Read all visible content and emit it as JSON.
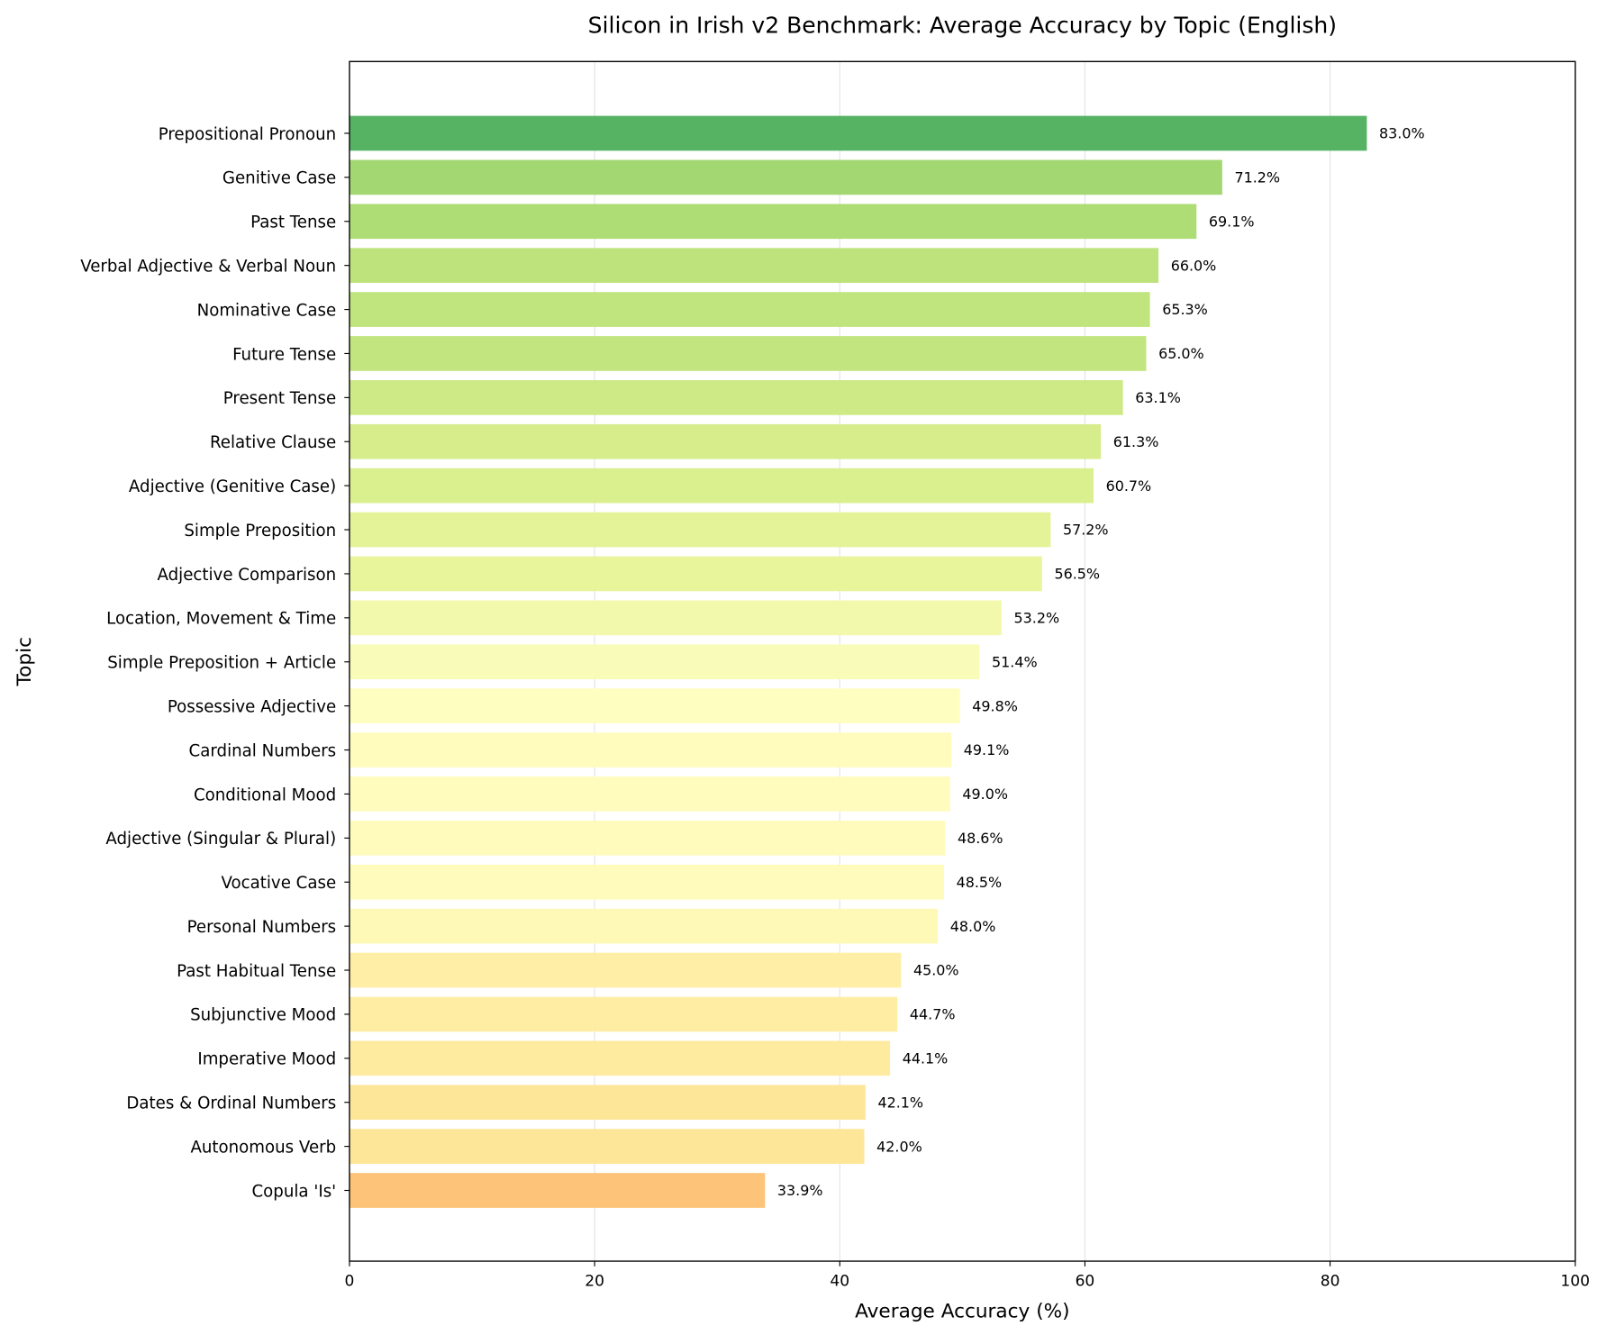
{
  "chart_data": {
    "type": "bar",
    "orientation": "horizontal",
    "title": "Silicon in Irish v2 Benchmark: Average Accuracy by Topic (English)",
    "xlabel": "Average Accuracy (%)",
    "ylabel": "Topic",
    "xlim": [
      0,
      100
    ],
    "xticks": [
      0,
      20,
      40,
      60,
      80,
      100
    ],
    "grid": "x",
    "value_label_suffix": "%",
    "categories": [
      "Prepositional Pronoun",
      "Genitive Case",
      "Past Tense",
      "Verbal Adjective & Verbal Noun",
      "Nominative Case",
      "Future Tense",
      "Present Tense",
      "Relative Clause",
      "Adjective (Genitive Case)",
      "Simple Preposition",
      "Adjective Comparison",
      "Location, Movement & Time",
      "Simple Preposition + Article",
      "Possessive Adjective",
      "Cardinal Numbers",
      "Conditional Mood",
      "Adjective (Singular & Plural)",
      "Vocative Case",
      "Personal Numbers",
      "Past Habitual Tense",
      "Subjunctive Mood",
      "Imperative Mood",
      "Dates & Ordinal Numbers",
      "Autonomous Verb",
      "Copula 'Is'"
    ],
    "values": [
      83.0,
      71.2,
      69.1,
      66.0,
      65.3,
      65.0,
      63.1,
      61.3,
      60.7,
      57.2,
      56.5,
      53.2,
      51.4,
      49.8,
      49.1,
      49.0,
      48.6,
      48.5,
      48.0,
      45.0,
      44.7,
      44.1,
      42.1,
      42.0,
      33.9
    ],
    "colors": [
      "#4daf5c",
      "#9dd56a",
      "#aadb6e",
      "#bae275",
      "#bde377",
      "#bfe478",
      "#cbe980",
      "#d5ec86",
      "#d8ee88",
      "#e4f292",
      "#e8f496",
      "#f2f9a8",
      "#f8fcb4",
      "#fefebd",
      "#fffcba",
      "#fffcba",
      "#fffbb8",
      "#fffbb8",
      "#fff9b4",
      "#ffeda0",
      "#ffec9f",
      "#feea9b",
      "#fee593",
      "#fee592",
      "#fdc071"
    ]
  }
}
